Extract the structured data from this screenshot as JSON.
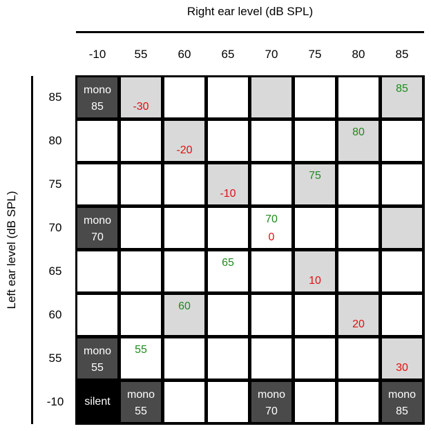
{
  "titles": {
    "top": "Right ear level (dB SPL)",
    "side": "Left ear level (dB SPL)"
  },
  "columns": [
    "-10",
    "55",
    "60",
    "65",
    "70",
    "75",
    "80",
    "85"
  ],
  "rows": [
    "85",
    "80",
    "75",
    "70",
    "65",
    "60",
    "55",
    "-10"
  ],
  "colors": {
    "green_text": "#1e8a1e",
    "red_text": "#e01010",
    "shaded_cell": "#d9d9d9",
    "mono_cell": "#4a4a4a",
    "silent_cell": "#000000"
  },
  "cells": {
    "r0c0": {
      "kind": "mono",
      "line1": "mono",
      "line2": "85"
    },
    "r0c1": {
      "kind": "shade",
      "red": "-30"
    },
    "r0c4": {
      "kind": "shade"
    },
    "r0c7": {
      "kind": "shade",
      "green": "85"
    },
    "r1c2": {
      "kind": "shade",
      "red": "-20"
    },
    "r1c6": {
      "kind": "shade",
      "green": "80"
    },
    "r2c3": {
      "kind": "shade",
      "red": "-10"
    },
    "r2c5": {
      "kind": "shade",
      "green": "75"
    },
    "r3c0": {
      "kind": "mono",
      "line1": "mono",
      "line2": "70"
    },
    "r3c4": {
      "kind": "plain",
      "green": "70",
      "red": "0"
    },
    "r3c7": {
      "kind": "shade"
    },
    "r4c3": {
      "kind": "plain",
      "green": "65"
    },
    "r4c5": {
      "kind": "shade",
      "red": "10"
    },
    "r5c2": {
      "kind": "shade",
      "green": "60"
    },
    "r5c6": {
      "kind": "shade",
      "red": "20"
    },
    "r6c0": {
      "kind": "mono",
      "line1": "mono",
      "line2": "55"
    },
    "r6c1": {
      "kind": "plain",
      "green": "55"
    },
    "r6c7": {
      "kind": "shade",
      "red": "30"
    },
    "r7c0": {
      "kind": "silent",
      "text": "silent"
    },
    "r7c1": {
      "kind": "mono",
      "line1": "mono",
      "line2": "55"
    },
    "r7c4": {
      "kind": "mono",
      "line1": "mono",
      "line2": "70"
    },
    "r7c7": {
      "kind": "mono",
      "line1": "mono",
      "line2": "85"
    }
  }
}
